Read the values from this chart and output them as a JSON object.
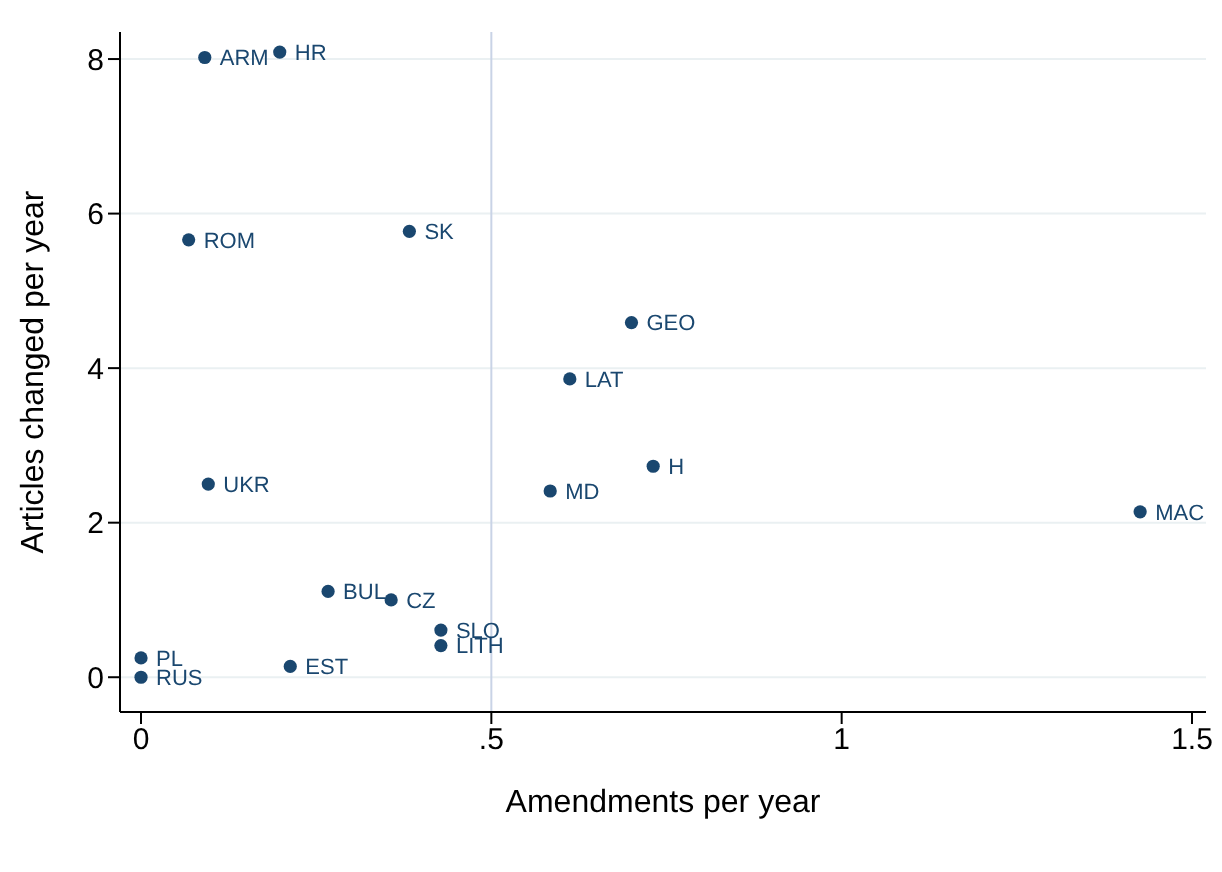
{
  "chart_data": {
    "type": "scatter",
    "xlabel": "Amendments per year",
    "ylabel": "Articles changed per year",
    "x": [
      0.091,
      0.198,
      0.068,
      0.383,
      0.7,
      0.612,
      0.096,
      0.731,
      0.584,
      1.426,
      0.267,
      0.357,
      0.428,
      0.428,
      0.213,
      0,
      0
    ],
    "series": [
      {
        "color": "#1a476f",
        "values": [
          8.02,
          8.09,
          5.66,
          5.77,
          4.59,
          3.86,
          2.5,
          2.73,
          2.41,
          2.14,
          1.11,
          1.0,
          0.61,
          0.41,
          0.14,
          0.25,
          0
        ]
      }
    ],
    "annotations": [
      {
        "text": "ARM",
        "x": 0.091,
        "y": 8.02
      },
      {
        "text": "HR",
        "x": 0.198,
        "y": 8.09
      },
      {
        "text": "ROM",
        "x": 0.068,
        "y": 5.66
      },
      {
        "text": "SK",
        "x": 0.383,
        "y": 5.77
      },
      {
        "text": "GEO",
        "x": 0.7,
        "y": 4.59
      },
      {
        "text": "LAT",
        "x": 0.612,
        "y": 3.86
      },
      {
        "text": "UKR",
        "x": 0.096,
        "y": 2.5
      },
      {
        "text": "H",
        "x": 0.731,
        "y": 2.73
      },
      {
        "text": "MD",
        "x": 0.584,
        "y": 2.41
      },
      {
        "text": "MAC",
        "x": 1.426,
        "y": 2.14
      },
      {
        "text": "BUL",
        "x": 0.267,
        "y": 1.11
      },
      {
        "text": "CZ",
        "x": 0.357,
        "y": 1.0
      },
      {
        "text": "SLO",
        "x": 0.428,
        "y": 0.61
      },
      {
        "text": "LITH",
        "x": 0.428,
        "y": 0.41
      },
      {
        "text": "EST",
        "x": 0.213,
        "y": 0.14
      },
      {
        "text": "PL",
        "x": 0,
        "y": 0.25
      },
      {
        "text": "RUS",
        "x": 0,
        "y": 0
      }
    ],
    "xlim": [
      -0.03,
      1.52
    ],
    "ylim": [
      -0.45,
      8.35
    ],
    "xticks": [
      0,
      {
        "value": 0.5,
        "label": ".5"
      },
      1,
      1.5
    ],
    "yticks": [
      0,
      2,
      4,
      6,
      8
    ],
    "grid": "y",
    "marker": "circle",
    "ref_lines": [
      {
        "axis": "x",
        "value": 0.5,
        "color": "#c9d3e6"
      }
    ]
  }
}
